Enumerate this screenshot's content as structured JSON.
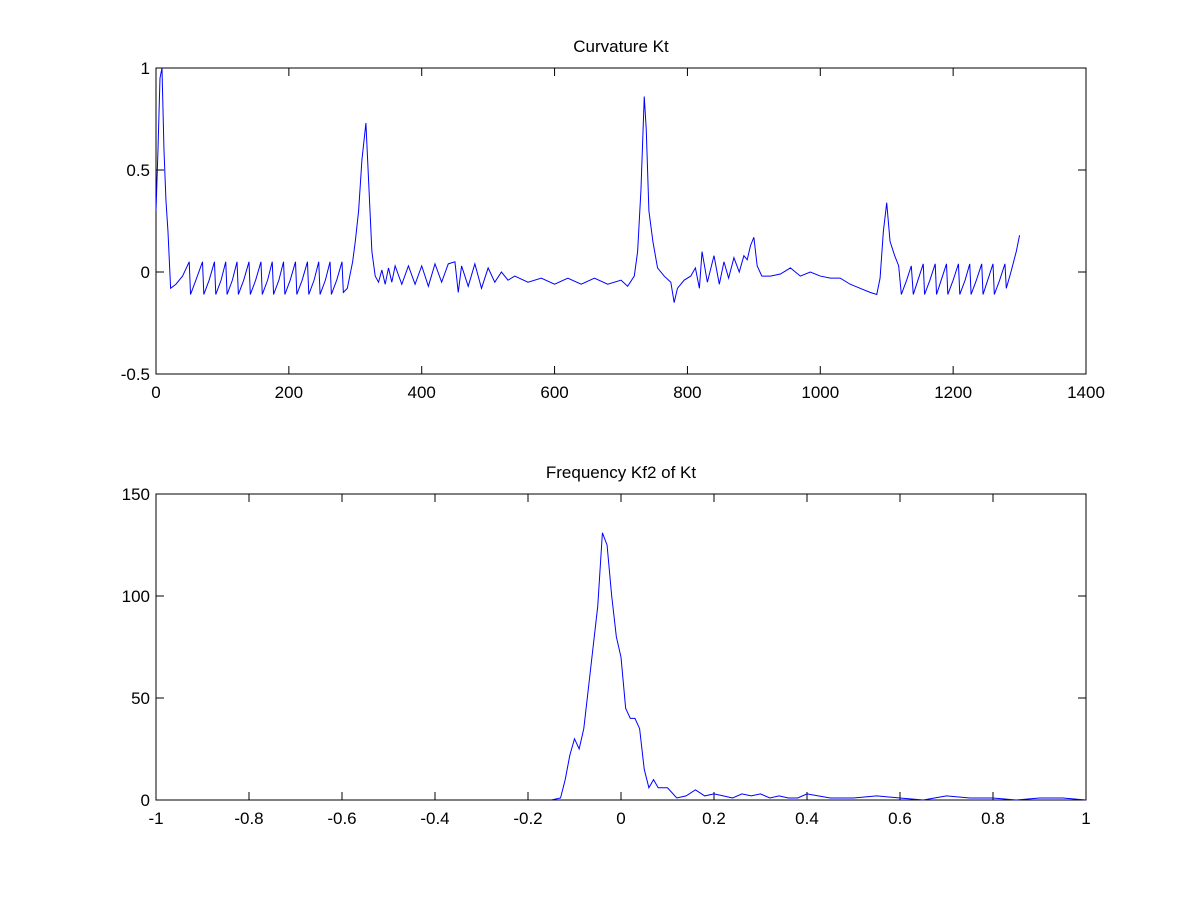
{
  "chart_data": [
    {
      "type": "line",
      "title": "Curvature Kt",
      "color": "#0000ff",
      "xlim": [
        0,
        1400
      ],
      "ylim": [
        -0.5,
        1
      ],
      "xticks": [
        0,
        200,
        400,
        600,
        800,
        1000,
        1200,
        1400
      ],
      "yticks": [
        -0.5,
        0,
        0.5,
        1
      ],
      "x": [
        0,
        3,
        6,
        9,
        12,
        15,
        18,
        22,
        30,
        40,
        50,
        52,
        60,
        70,
        72,
        80,
        88,
        90,
        98,
        105,
        107,
        115,
        122,
        124,
        132,
        140,
        142,
        150,
        158,
        160,
        168,
        175,
        177,
        185,
        192,
        194,
        202,
        210,
        212,
        220,
        228,
        230,
        238,
        245,
        247,
        255,
        262,
        264,
        272,
        280,
        282,
        288,
        296,
        300,
        305,
        310,
        316,
        320,
        325,
        330,
        335,
        340,
        345,
        350,
        355,
        360,
        370,
        380,
        390,
        400,
        410,
        420,
        430,
        440,
        450,
        455,
        460,
        470,
        480,
        490,
        500,
        510,
        520,
        530,
        540,
        560,
        580,
        600,
        620,
        640,
        660,
        680,
        700,
        710,
        720,
        725,
        730,
        735,
        738,
        742,
        748,
        755,
        765,
        775,
        780,
        785,
        795,
        805,
        812,
        818,
        822,
        830,
        840,
        848,
        855,
        862,
        870,
        878,
        885,
        890,
        895,
        900,
        905,
        912,
        925,
        940,
        955,
        970,
        985,
        1000,
        1015,
        1030,
        1045,
        1060,
        1075,
        1085,
        1090,
        1095,
        1100,
        1105,
        1112,
        1118,
        1122,
        1130,
        1137,
        1140,
        1147,
        1155,
        1157,
        1165,
        1173,
        1175,
        1182,
        1190,
        1192,
        1200,
        1208,
        1210,
        1218,
        1225,
        1227,
        1235,
        1243,
        1245,
        1252,
        1260,
        1262,
        1270,
        1278,
        1280,
        1287,
        1295,
        1300
      ],
      "values": [
        0.3,
        0.6,
        0.95,
        1.0,
        0.6,
        0.35,
        0.2,
        -0.08,
        -0.06,
        -0.02,
        0.05,
        -0.11,
        -0.04,
        0.05,
        -0.11,
        -0.04,
        0.05,
        -0.11,
        -0.04,
        0.05,
        -0.11,
        -0.04,
        0.05,
        -0.11,
        -0.04,
        0.05,
        -0.11,
        -0.04,
        0.05,
        -0.11,
        -0.04,
        0.05,
        -0.11,
        -0.04,
        0.05,
        -0.11,
        -0.04,
        0.05,
        -0.11,
        -0.04,
        0.05,
        -0.11,
        -0.04,
        0.05,
        -0.11,
        -0.04,
        0.05,
        -0.11,
        -0.04,
        0.05,
        -0.1,
        -0.08,
        0.05,
        0.15,
        0.3,
        0.55,
        0.73,
        0.45,
        0.1,
        -0.02,
        -0.05,
        0.01,
        -0.06,
        0.02,
        -0.05,
        0.03,
        -0.06,
        0.03,
        -0.06,
        0.03,
        -0.07,
        0.04,
        -0.05,
        0.04,
        0.05,
        -0.1,
        0.03,
        -0.07,
        0.04,
        -0.08,
        0.02,
        -0.05,
        0.0,
        -0.04,
        -0.02,
        -0.05,
        -0.03,
        -0.06,
        -0.03,
        -0.06,
        -0.03,
        -0.06,
        -0.04,
        -0.07,
        -0.02,
        0.1,
        0.4,
        0.86,
        0.7,
        0.3,
        0.15,
        0.02,
        -0.02,
        -0.05,
        -0.15,
        -0.08,
        -0.04,
        -0.02,
        0.02,
        -0.08,
        0.1,
        -0.05,
        0.08,
        -0.06,
        0.05,
        -0.03,
        0.07,
        0.0,
        0.08,
        0.06,
        0.13,
        0.17,
        0.03,
        -0.02,
        -0.02,
        -0.01,
        0.02,
        -0.02,
        0.0,
        -0.02,
        -0.03,
        -0.03,
        -0.06,
        -0.08,
        -0.1,
        -0.11,
        -0.03,
        0.2,
        0.34,
        0.15,
        0.08,
        0.03,
        -0.11,
        -0.04,
        0.03,
        -0.11,
        -0.04,
        0.04,
        -0.11,
        -0.04,
        0.04,
        -0.11,
        -0.04,
        0.04,
        -0.11,
        -0.04,
        0.04,
        -0.11,
        -0.04,
        0.04,
        -0.11,
        -0.04,
        0.04,
        -0.11,
        -0.04,
        0.04,
        -0.11,
        -0.04,
        0.04,
        -0.08,
        0.0,
        0.1,
        0.18
      ]
    },
    {
      "type": "line",
      "title": "Frequency Kf2 of Kt",
      "color": "#0000ff",
      "xlim": [
        -1,
        1
      ],
      "ylim": [
        0,
        150
      ],
      "xticks": [
        -1,
        -0.8,
        -0.6,
        -0.4,
        -0.2,
        0,
        0.2,
        0.4,
        0.6,
        0.8,
        1
      ],
      "yticks": [
        0,
        50,
        100,
        150
      ],
      "x": [
        -0.15,
        -0.13,
        -0.12,
        -0.11,
        -0.1,
        -0.09,
        -0.08,
        -0.07,
        -0.06,
        -0.05,
        -0.04,
        -0.03,
        -0.02,
        -0.01,
        0,
        0.01,
        0.02,
        0.03,
        0.04,
        0.05,
        0.06,
        0.07,
        0.08,
        0.1,
        0.12,
        0.14,
        0.16,
        0.18,
        0.2,
        0.22,
        0.24,
        0.26,
        0.28,
        0.3,
        0.32,
        0.34,
        0.36,
        0.38,
        0.4,
        0.45,
        0.5,
        0.55,
        0.6,
        0.65,
        0.7,
        0.75,
        0.8,
        0.85,
        0.9,
        0.95,
        1
      ],
      "values": [
        0,
        1,
        10,
        22,
        30,
        25,
        35,
        55,
        75,
        95,
        131,
        125,
        100,
        80,
        70,
        45,
        40,
        40,
        35,
        15,
        6,
        10,
        6,
        6,
        1,
        2,
        5,
        2,
        3,
        2,
        1,
        3,
        2,
        3,
        1,
        2,
        1,
        1,
        3,
        1,
        1,
        2,
        1,
        0,
        2,
        1,
        1,
        0,
        1,
        1,
        0
      ]
    }
  ]
}
